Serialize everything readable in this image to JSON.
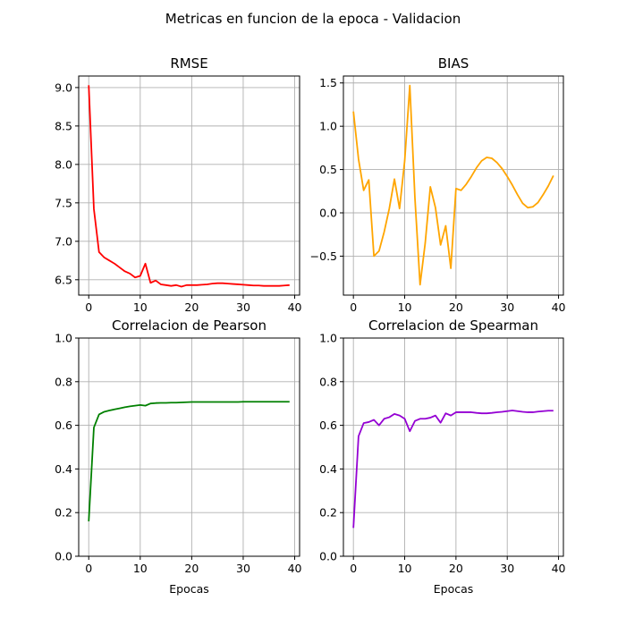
{
  "figure": {
    "suptitle": "Metricas en funcion de la epoca - Validacion"
  },
  "chart_data": [
    {
      "type": "line",
      "title": "RMSE",
      "xlabel": "",
      "ylabel": "",
      "color": "#ff0000",
      "xlim": [
        -1.95,
        40.95
      ],
      "ylim": [
        6.3,
        9.15
      ],
      "xticks": [
        0,
        10,
        20,
        30,
        40
      ],
      "yticks": [
        6.5,
        7.0,
        7.5,
        8.0,
        8.5,
        9.0
      ],
      "ytick_labels": [
        "6.5",
        "7.0",
        "7.5",
        "8.0",
        "8.5",
        "9.0"
      ],
      "grid": true,
      "x": [
        0,
        1,
        2,
        3,
        4,
        5,
        6,
        7,
        8,
        9,
        10,
        11,
        12,
        13,
        14,
        15,
        16,
        17,
        18,
        19,
        20,
        21,
        22,
        23,
        24,
        25,
        26,
        27,
        28,
        29,
        30,
        31,
        32,
        33,
        34,
        35,
        36,
        37,
        38,
        39
      ],
      "values": [
        9.03,
        7.42,
        6.86,
        6.79,
        6.75,
        6.71,
        6.66,
        6.61,
        6.58,
        6.53,
        6.55,
        6.71,
        6.46,
        6.49,
        6.44,
        6.43,
        6.42,
        6.43,
        6.41,
        6.43,
        6.43,
        6.43,
        6.435,
        6.44,
        6.45,
        6.455,
        6.455,
        6.45,
        6.445,
        6.44,
        6.435,
        6.43,
        6.425,
        6.425,
        6.42,
        6.42,
        6.42,
        6.42,
        6.425,
        6.43
      ]
    },
    {
      "type": "line",
      "title": "BIAS",
      "xlabel": "",
      "ylabel": "",
      "color": "#ffa500",
      "xlim": [
        -1.95,
        40.95
      ],
      "ylim": [
        -0.95,
        1.58
      ],
      "xticks": [
        0,
        10,
        20,
        30,
        40
      ],
      "yticks": [
        -0.5,
        0.0,
        0.5,
        1.0,
        1.5
      ],
      "ytick_labels": [
        "−0.5",
        "0.0",
        "0.5",
        "1.0",
        "1.5"
      ],
      "grid": true,
      "x": [
        0,
        1,
        2,
        3,
        4,
        5,
        6,
        7,
        8,
        9,
        10,
        11,
        12,
        13,
        14,
        15,
        16,
        17,
        18,
        19,
        20,
        21,
        22,
        23,
        24,
        25,
        26,
        27,
        28,
        29,
        30,
        31,
        32,
        33,
        34,
        35,
        36,
        37,
        38,
        39
      ],
      "values": [
        1.17,
        0.62,
        0.26,
        0.38,
        -0.5,
        -0.44,
        -0.22,
        0.05,
        0.39,
        0.05,
        0.6,
        1.47,
        0.17,
        -0.83,
        -0.35,
        0.3,
        0.06,
        -0.37,
        -0.15,
        -0.64,
        0.28,
        0.26,
        0.33,
        0.42,
        0.52,
        0.6,
        0.64,
        0.63,
        0.58,
        0.51,
        0.42,
        0.32,
        0.21,
        0.11,
        0.06,
        0.07,
        0.12,
        0.21,
        0.31,
        0.43
      ]
    },
    {
      "type": "line",
      "title": "Correlacion de Pearson",
      "xlabel": "Epocas",
      "ylabel": "",
      "color": "#008000",
      "xlim": [
        -1.95,
        40.95
      ],
      "ylim": [
        0.0,
        1.0
      ],
      "xticks": [
        0,
        10,
        20,
        30,
        40
      ],
      "yticks": [
        0.0,
        0.2,
        0.4,
        0.6,
        0.8,
        1.0
      ],
      "ytick_labels": [
        "0.0",
        "0.2",
        "0.4",
        "0.6",
        "0.8",
        "1.0"
      ],
      "grid": true,
      "x": [
        0,
        1,
        2,
        3,
        4,
        5,
        6,
        7,
        8,
        9,
        10,
        11,
        12,
        13,
        14,
        15,
        16,
        17,
        18,
        19,
        20,
        21,
        22,
        23,
        24,
        25,
        26,
        27,
        28,
        29,
        30,
        31,
        32,
        33,
        34,
        35,
        36,
        37,
        38,
        39
      ],
      "values": [
        0.16,
        0.59,
        0.65,
        0.662,
        0.668,
        0.673,
        0.678,
        0.683,
        0.687,
        0.69,
        0.693,
        0.69,
        0.7,
        0.702,
        0.703,
        0.703,
        0.704,
        0.704,
        0.705,
        0.706,
        0.707,
        0.707,
        0.707,
        0.707,
        0.707,
        0.707,
        0.707,
        0.707,
        0.707,
        0.707,
        0.708,
        0.708,
        0.708,
        0.708,
        0.708,
        0.708,
        0.708,
        0.708,
        0.708,
        0.708
      ]
    },
    {
      "type": "line",
      "title": "Correlacion de Spearman",
      "xlabel": "Epocas",
      "ylabel": "",
      "color": "#9400d3",
      "xlim": [
        -1.95,
        40.95
      ],
      "ylim": [
        0.0,
        1.0
      ],
      "xticks": [
        0,
        10,
        20,
        30,
        40
      ],
      "yticks": [
        0.0,
        0.2,
        0.4,
        0.6,
        0.8,
        1.0
      ],
      "ytick_labels": [
        "0.0",
        "0.2",
        "0.4",
        "0.6",
        "0.8",
        "1.0"
      ],
      "grid": true,
      "x": [
        0,
        1,
        2,
        3,
        4,
        5,
        6,
        7,
        8,
        9,
        10,
        11,
        12,
        13,
        14,
        15,
        16,
        17,
        18,
        19,
        20,
        21,
        22,
        23,
        24,
        25,
        26,
        27,
        28,
        29,
        30,
        31,
        32,
        33,
        34,
        35,
        36,
        37,
        38,
        39
      ],
      "values": [
        0.13,
        0.55,
        0.61,
        0.615,
        0.625,
        0.6,
        0.63,
        0.637,
        0.652,
        0.645,
        0.63,
        0.573,
        0.62,
        0.63,
        0.63,
        0.635,
        0.645,
        0.612,
        0.655,
        0.645,
        0.66,
        0.66,
        0.66,
        0.66,
        0.657,
        0.655,
        0.655,
        0.657,
        0.66,
        0.662,
        0.665,
        0.668,
        0.665,
        0.662,
        0.66,
        0.66,
        0.663,
        0.665,
        0.667,
        0.667
      ]
    }
  ]
}
